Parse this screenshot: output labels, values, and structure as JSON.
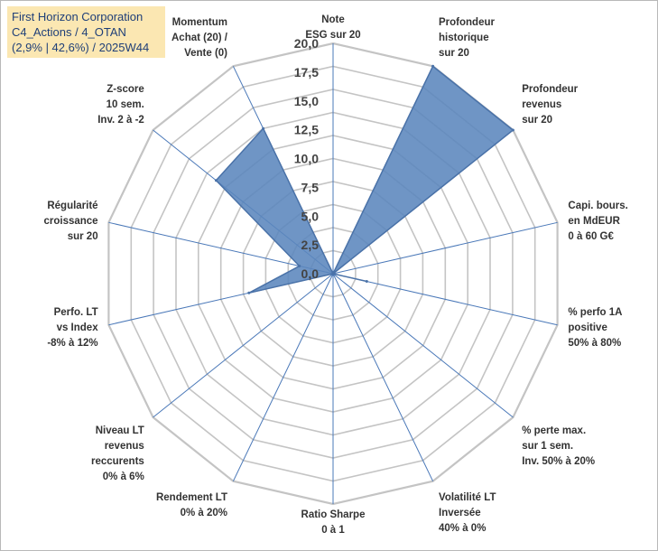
{
  "title": {
    "line1": "First Horizon Corporation",
    "line2": "C4_Actions / 4_OTAN",
    "line3": "(2,9% | 42,6%) / 2025W44"
  },
  "chart_data": {
    "type": "radar",
    "rmin": 0,
    "rmax": 20,
    "ticks": [
      "0,0",
      "2,5",
      "5,0",
      "7,5",
      "10,0",
      "12,5",
      "15,0",
      "17,5",
      "20,0"
    ],
    "tick_values": [
      0,
      2.5,
      5,
      7.5,
      10,
      12.5,
      15,
      17.5,
      20
    ],
    "grid_steps": 10,
    "axes": [
      {
        "lines": [
          "Note",
          "ESG sur 20"
        ],
        "value": 0
      },
      {
        "lines": [
          "Profondeur",
          "historique",
          "sur 20"
        ],
        "value": 20
      },
      {
        "lines": [
          "Profondeur",
          "revenus",
          "sur 20"
        ],
        "value": 20
      },
      {
        "lines": [
          "Capi. bours.",
          "en MdEUR",
          "0 à 60 G€"
        ],
        "value": 0
      },
      {
        "lines": [
          "% perfo 1A",
          "positive",
          "50% à 80%"
        ],
        "value": 3
      },
      {
        "lines": [
          "% perte max.",
          "sur 1 sem.",
          "Inv. 50% à 20%"
        ],
        "value": 0
      },
      {
        "lines": [
          "Volatilité LT",
          "Inversée",
          "40% à 0%"
        ],
        "value": 0
      },
      {
        "lines": [
          "Ratio Sharpe",
          "0 à 1"
        ],
        "value": 0
      },
      {
        "lines": [
          "Rendement LT",
          "0% à 20%"
        ],
        "value": 0
      },
      {
        "lines": [
          "Niveau LT",
          "revenus",
          "reccurents",
          "0% à 6%"
        ],
        "value": 0
      },
      {
        "lines": [
          "Perfo. LT",
          "vs Index",
          "-8% à 12%"
        ],
        "value": 7.5
      },
      {
        "lines": [
          "Régularité",
          "croissance",
          "sur 20"
        ],
        "value": 3
      },
      {
        "lines": [
          "Z-score",
          "10 sem.",
          "Inv. 2 à -2"
        ],
        "value": 13
      },
      {
        "lines": [
          "Momentum",
          "Achat (20) /",
          "Vente (0)"
        ],
        "value": 14
      }
    ],
    "colors": {
      "fill": "#5b86bd",
      "stroke": "#4a72a8",
      "grid": "#c4c4c4",
      "spoke": "#4a78b8"
    }
  }
}
